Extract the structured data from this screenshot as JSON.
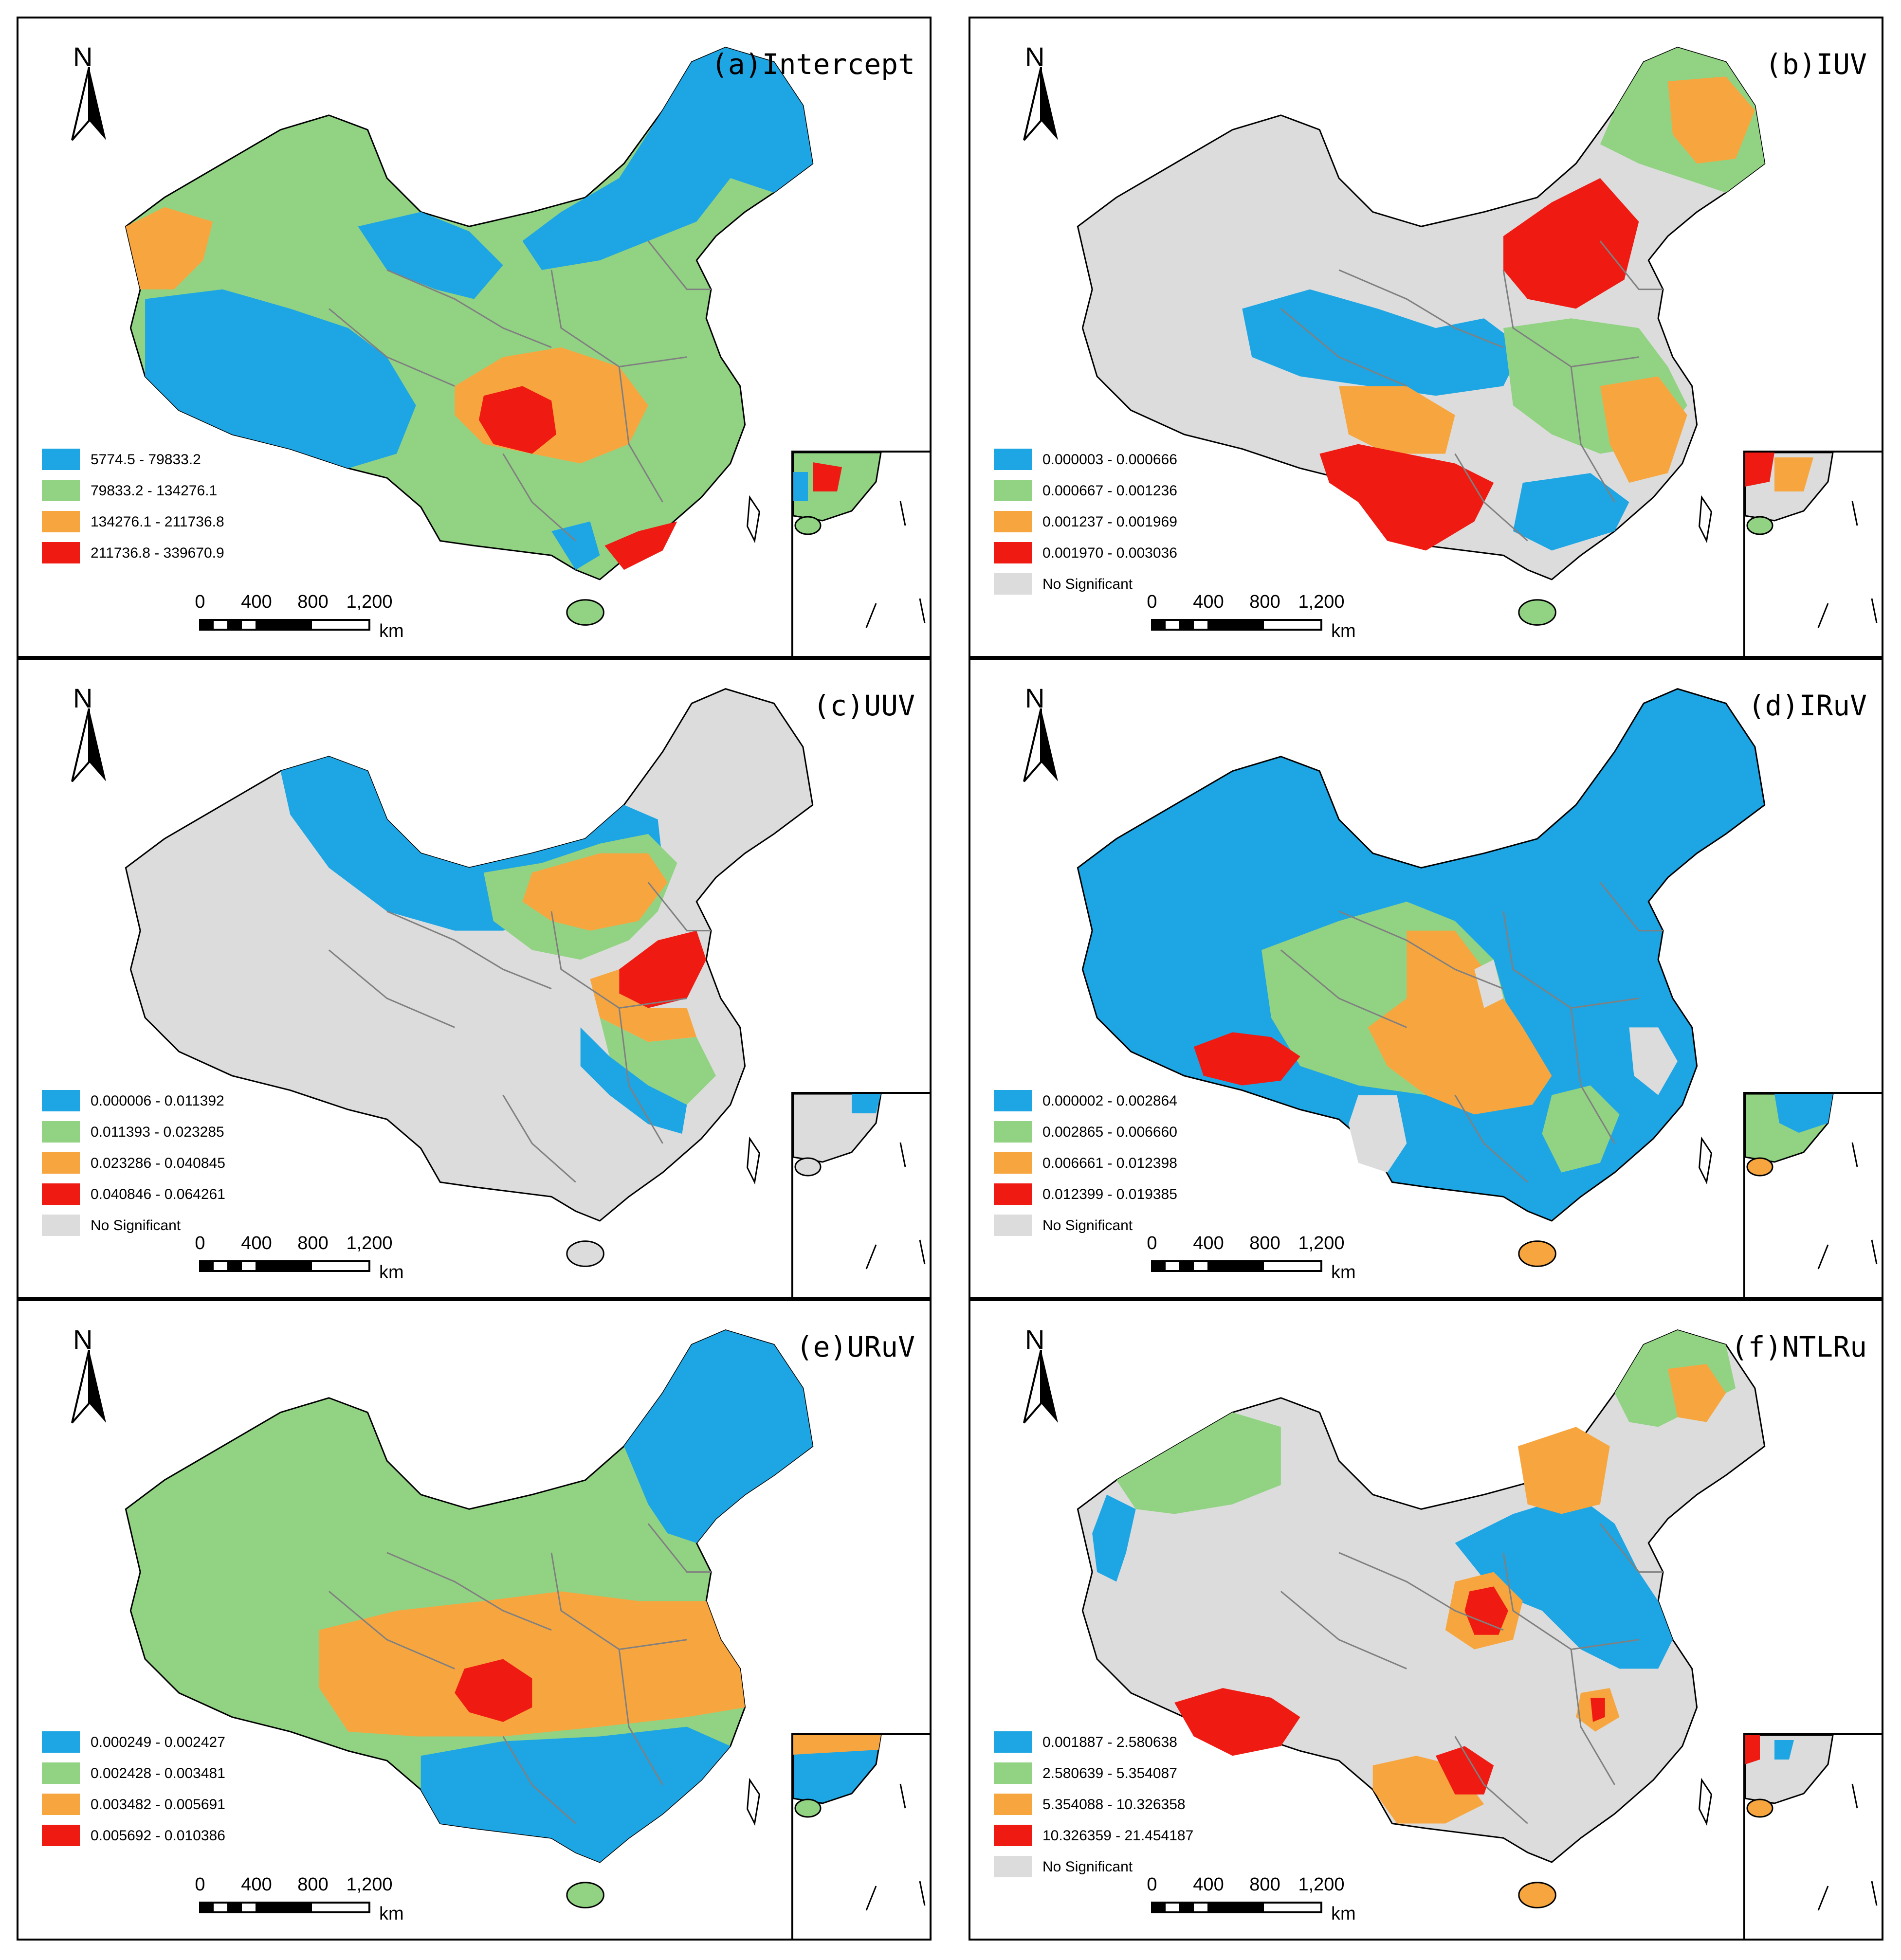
{
  "figure": {
    "north_label": "N",
    "km_label": "km",
    "scale_ticks": [
      "0",
      "400",
      "800",
      "1,200"
    ],
    "no_sig_label": "No Significant",
    "colors": {
      "class1": "#1ea5e3",
      "class2": "#92d383",
      "class3": "#f7a63f",
      "class4": "#ef1a12",
      "no_significant": "#dcdcdc",
      "boundary": "#808080",
      "outline": "#000000"
    }
  },
  "panels": [
    {
      "title": "(a)Intercept",
      "legend": [
        "5774.5 - 79833.2",
        "79833.2 - 134276.1",
        "134276.1 - 211736.8",
        "211736.8 - 339670.9"
      ],
      "has_no_significant": false
    },
    {
      "title": "(b)IUV",
      "legend": [
        "0.000003 - 0.000666",
        "0.000667 - 0.001236",
        "0.001237 - 0.001969",
        "0.001970 - 0.003036"
      ],
      "has_no_significant": true
    },
    {
      "title": "(c)UUV",
      "legend": [
        "0.000006 - 0.011392",
        "0.011393 - 0.023285",
        "0.023286 - 0.040845",
        "0.040846 - 0.064261"
      ],
      "has_no_significant": true
    },
    {
      "title": "(d)IRuV",
      "legend": [
        "0.000002 - 0.002864",
        "0.002865 - 0.006660",
        "0.006661 - 0.012398",
        "0.012399 - 0.019385"
      ],
      "has_no_significant": true
    },
    {
      "title": "(e)URuV",
      "legend": [
        "0.000249 - 0.002427",
        "0.002428 - 0.003481",
        "0.003482 - 0.005691",
        "0.005692 - 0.010386"
      ],
      "has_no_significant": false
    },
    {
      "title": "(f)NTLRu",
      "legend": [
        "0.001887 - 2.580638",
        "2.580639 - 5.354087",
        "5.354088 - 10.326358",
        "10.326359 - 21.454187"
      ],
      "has_no_significant": true
    }
  ]
}
